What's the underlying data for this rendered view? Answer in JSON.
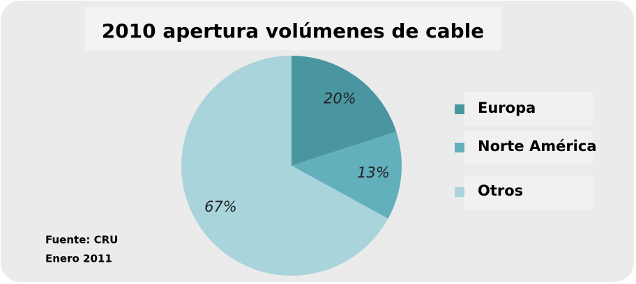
{
  "chart_data": {
    "type": "pie",
    "title": "2010 apertura volúmenes de cable",
    "categories": [
      "Europa",
      "Norte América",
      "Otros"
    ],
    "values": [
      20,
      13,
      67
    ],
    "value_labels": [
      "20%",
      "13%",
      "67%"
    ],
    "colors": [
      "#4a96a0",
      "#62b0bb",
      "#a9d4db"
    ],
    "legend": "right",
    "annotations": [
      "Fuente: CRU",
      "Enero 2011"
    ]
  }
}
